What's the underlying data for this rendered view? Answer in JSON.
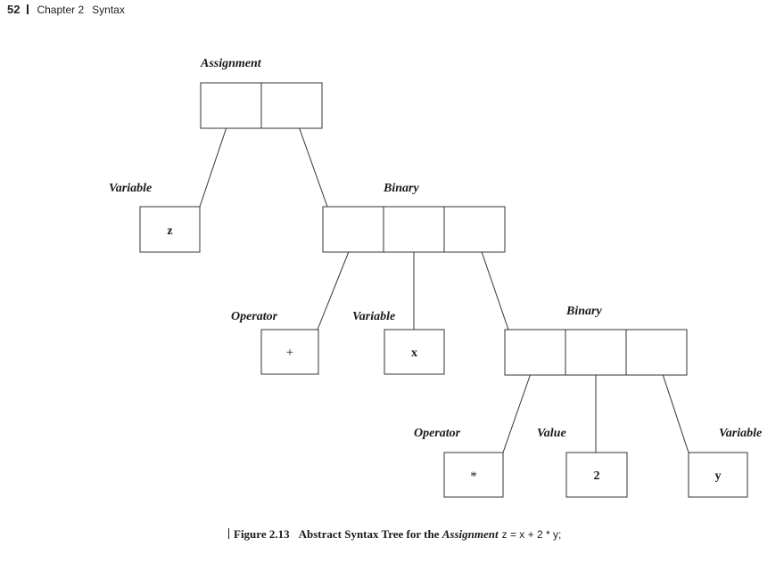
{
  "header": {
    "page_number": "52",
    "chapter": "Chapter 2",
    "section": "Syntax"
  },
  "tree": {
    "assignment": {
      "label": "Assignment"
    },
    "target": {
      "label": "Variable",
      "value": "z"
    },
    "outer_binary": {
      "label": "Binary"
    },
    "plus_operator": {
      "label": "Operator",
      "value": "+"
    },
    "x_variable": {
      "label": "Variable",
      "value": "x"
    },
    "inner_binary": {
      "label": "Binary"
    },
    "times_operator": {
      "label": "Operator",
      "value": "*"
    },
    "two_value": {
      "label": "Value",
      "value": "2"
    },
    "y_variable": {
      "label": "Variable",
      "value": "y"
    }
  },
  "caption": {
    "number": "Figure 2.13",
    "title": "Abstract Syntax Tree for the",
    "term": "Assignment",
    "code": "z = x + 2 * y;"
  }
}
